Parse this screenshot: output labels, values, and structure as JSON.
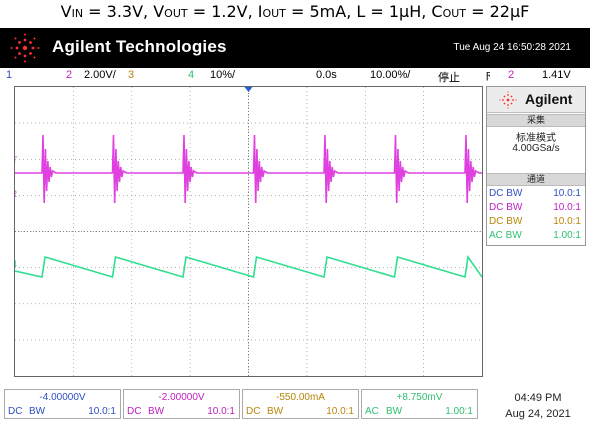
{
  "caption": {
    "v": "V",
    "in_sub": "IN",
    "eq1": " = 3.3V, V",
    "out_sub": "OUT",
    "eq2": " = 1.2V, I",
    "iout_sub": "OUT",
    "eq3": " = 5mA, L = 1μH, C",
    "cout_sub": "OUT",
    "eq4": " = 22μF"
  },
  "header": {
    "brand": "Agilent Technologies",
    "datetime": "Tue Aug 24 16:50:28 2021"
  },
  "status": {
    "ch1_num": "1",
    "ch2_num": "2",
    "ch2_scale": "2.00V/",
    "ch3_num": "3",
    "ch4_num": "4",
    "ch4_scale": "10%/",
    "time_offset": "0.0s",
    "time_scale": "10.00%/",
    "run_state": "停止",
    "trig_icon": "ϝ",
    "trig_ch": "2",
    "trig_level": "1.41V"
  },
  "side": {
    "logo": "Agilent",
    "acq_title": "采集",
    "acq_mode": "标准模式",
    "acq_rate": "4.00GSa/s",
    "chan_title": "通道",
    "channels": [
      {
        "label": "DC BW",
        "probe": "10.0:1",
        "color": "#2f4fbf"
      },
      {
        "label": "DC BW",
        "probe": "10.0:1",
        "color": "#c020c0"
      },
      {
        "label": "DC BW",
        "probe": "10.0:1",
        "color": "#b8860b"
      },
      {
        "label": "AC BW",
        "probe": "1.00:1",
        "color": "#2fbf6f"
      }
    ]
  },
  "bottom": [
    {
      "offset": "-4.00000V",
      "coup": "DC",
      "bw": "BW",
      "probe": "10.0:1",
      "color": "#2f4fbf"
    },
    {
      "offset": "-2.00000V",
      "coup": "DC",
      "bw": "BW",
      "probe": "10.0:1",
      "color": "#c020c0"
    },
    {
      "offset": "-550.00mA",
      "coup": "DC",
      "bw": "BW",
      "probe": "10.0:1",
      "color": "#b8860b"
    },
    {
      "offset": "+8.750mV",
      "coup": "AC",
      "bw": "BW",
      "probe": "1.00:1",
      "color": "#2fbf6f"
    }
  ],
  "clock": {
    "time": "04:49 PM",
    "date": "Aug 24, 2021"
  },
  "markers": {
    "t": "T",
    "ch2": "2",
    "ch4": "4"
  },
  "colors": {
    "ch1": "#2f4fbf",
    "ch2": "#e040e0",
    "ch3": "#b8860b",
    "ch4": "#2fdf8f",
    "grid": "#888888"
  }
}
